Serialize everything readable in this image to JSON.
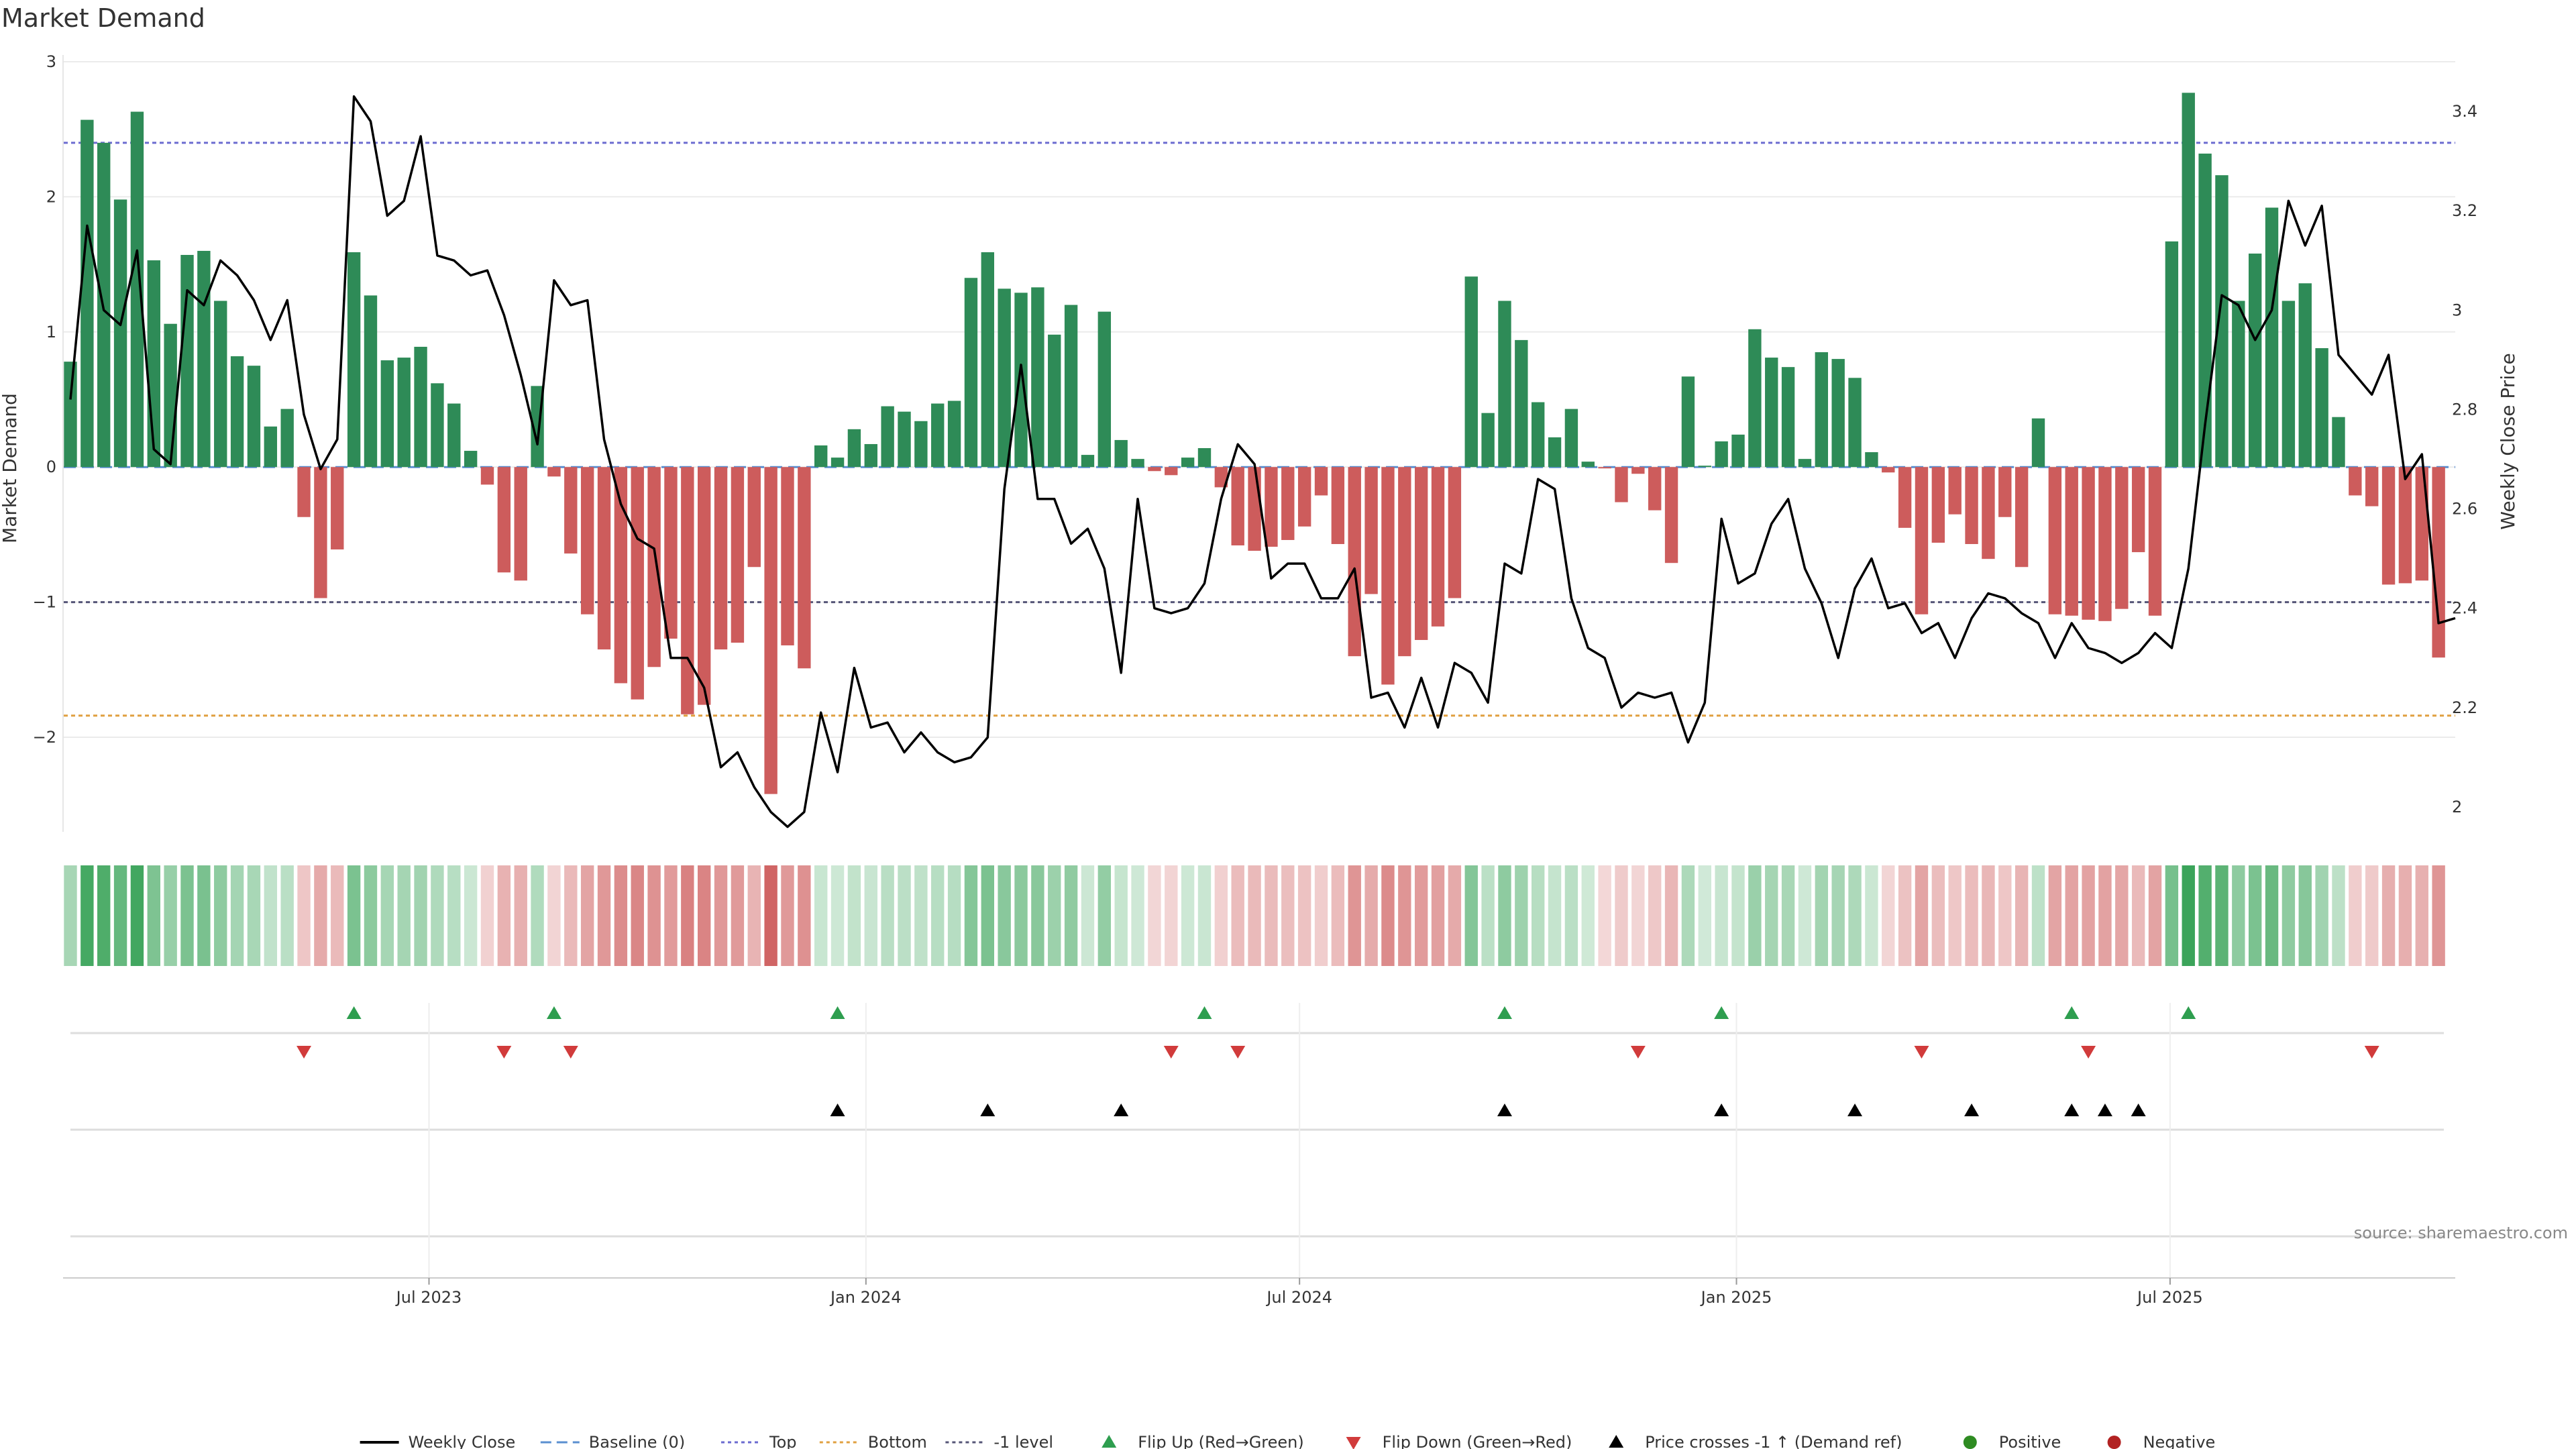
{
  "chart_data": {
    "type": "bar",
    "title": "Market Demand",
    "ylabel": "Market Demand",
    "y2label": "Weekly Close Price",
    "ylim": [
      -2.7,
      3.0
    ],
    "y2lim": [
      1.95,
      3.5
    ],
    "yticks": [
      3,
      2,
      1,
      0,
      -1,
      -2
    ],
    "y2ticks": [
      3.4,
      3.2,
      3,
      2.8,
      2.6,
      2.4,
      2.2,
      2
    ],
    "x_week_range": [
      0,
      143
    ],
    "x_ticks": [
      {
        "label": "Jul 2023",
        "x": 21.5
      },
      {
        "label": "Jan 2024",
        "x": 47.7
      },
      {
        "label": "Jul 2024",
        "x": 73.7
      },
      {
        "label": "Jan 2025",
        "x": 99.9
      },
      {
        "label": "Jul 2025",
        "x": 125.9
      }
    ],
    "reference_lines": [
      {
        "name": "Top",
        "value": 2.4,
        "color": "#6b6bd0"
      },
      {
        "name": "Baseline (0)",
        "value": 0,
        "color": "#5a8fd0"
      },
      {
        "name": "-1 level",
        "value": -1,
        "color": "#555577"
      },
      {
        "name": "Bottom",
        "value": -1.84,
        "color": "#e0a040"
      }
    ],
    "demand": [
      0.78,
      2.57,
      2.4,
      1.98,
      2.63,
      1.53,
      1.06,
      1.57,
      1.6,
      1.23,
      0.82,
      0.75,
      0.3,
      0.43,
      -0.37,
      -0.97,
      -0.61,
      1.59,
      1.27,
      0.79,
      0.81,
      0.89,
      0.62,
      0.47,
      0.12,
      -0.13,
      -0.78,
      -0.84,
      0.6,
      -0.07,
      -0.64,
      -1.09,
      -1.35,
      -1.6,
      -1.72,
      -1.48,
      -1.27,
      -1.83,
      -1.76,
      -1.35,
      -1.3,
      -0.74,
      -2.42,
      -1.32,
      -1.49,
      0.16,
      0.07,
      0.28,
      0.17,
      0.45,
      0.41,
      0.34,
      0.47,
      0.49,
      1.4,
      1.59,
      1.32,
      1.29,
      1.33,
      0.98,
      1.2,
      0.09,
      1.15,
      0.2,
      0.06,
      -0.03,
      -0.06,
      0.07,
      0.14,
      -0.15,
      -0.58,
      -0.62,
      -0.59,
      -0.54,
      -0.44,
      -0.21,
      -0.57,
      -1.4,
      -0.94,
      -1.61,
      -1.4,
      -1.28,
      -1.18,
      -0.97,
      1.41,
      0.4,
      1.23,
      0.94,
      0.48,
      0.22,
      0.43,
      0.04,
      -0.01,
      -0.26,
      -0.05,
      -0.32,
      -0.71,
      0.67,
      0.01,
      0.19,
      0.24,
      1.02,
      0.81,
      0.74,
      0.06,
      0.85,
      0.8,
      0.66,
      0.11,
      -0.04,
      -0.45,
      -1.09,
      -0.56,
      -0.35,
      -0.57,
      -0.68,
      -0.37,
      -0.74,
      0.36,
      -1.09,
      -1.1,
      -1.13,
      -1.14,
      -1.05,
      -0.63,
      -1.1,
      1.67,
      2.77,
      2.32,
      2.16,
      1.23,
      1.58,
      1.92,
      1.23,
      1.36,
      0.88,
      0.37,
      -0.21,
      -0.29,
      -0.87,
      -0.86,
      -0.84,
      -1.41
    ],
    "series": [
      {
        "name": "Weekly Close",
        "values": [
          2.82,
          3.17,
          3.0,
          2.97,
          3.12,
          2.72,
          2.69,
          3.04,
          3.01,
          3.1,
          3.07,
          3.02,
          2.94,
          3.02,
          2.79,
          2.68,
          2.74,
          3.43,
          3.38,
          3.19,
          3.22,
          3.35,
          3.11,
          3.1,
          3.07,
          3.08,
          2.99,
          2.87,
          2.73,
          3.06,
          3.01,
          3.02,
          2.74,
          2.61,
          2.54,
          2.52,
          2.3,
          2.3,
          2.24,
          2.08,
          2.11,
          2.04,
          1.99,
          1.96,
          1.99,
          2.19,
          2.07,
          2.28,
          2.16,
          2.17,
          2.11,
          2.15,
          2.11,
          2.09,
          2.1,
          2.14,
          2.64,
          2.89,
          2.62,
          2.62,
          2.53,
          2.56,
          2.48,
          2.27,
          2.62,
          2.4,
          2.39,
          2.4,
          2.45,
          2.62,
          2.73,
          2.69,
          2.46,
          2.49,
          2.49,
          2.42,
          2.42,
          2.48,
          2.22,
          2.23,
          2.16,
          2.26,
          2.16,
          2.29,
          2.27,
          2.21,
          2.49,
          2.47,
          2.66,
          2.64,
          2.42,
          2.32,
          2.3,
          2.2,
          2.23,
          2.22,
          2.23,
          2.13,
          2.21,
          2.58,
          2.45,
          2.47,
          2.57,
          2.62,
          2.48,
          2.41,
          2.3,
          2.44,
          2.5,
          2.4,
          2.41,
          2.35,
          2.37,
          2.3,
          2.38,
          2.43,
          2.42,
          2.39,
          2.37,
          2.3,
          2.37,
          2.32,
          2.31,
          2.29,
          2.31,
          2.35,
          2.32,
          2.48,
          2.77,
          3.03,
          3.01,
          2.94,
          3.0,
          3.22,
          3.13,
          3.21,
          2.91,
          2.87,
          2.83,
          2.91,
          2.66,
          2.71,
          2.37,
          2.38
        ]
      }
    ],
    "heat_strip": "same weekly Market Demand values coloured green (positive) / red (negative) with intensity by magnitude",
    "flip_up_weeks": [
      17,
      29,
      46,
      68,
      86,
      99,
      120,
      127
    ],
    "flip_down_weeks": [
      14,
      26,
      30,
      66,
      70,
      94,
      111,
      121,
      138
    ],
    "price_cross_weeks": [
      46,
      55,
      63,
      86,
      99,
      107,
      114,
      120,
      122,
      124
    ],
    "colors": {
      "positive": "#2e8b57",
      "negative": "#cd5c5c",
      "price": "#000000",
      "flip_up": "#2e9e4f",
      "flip_down": "#d13b3b",
      "cross": "#000000",
      "top": "#6b6bd0",
      "bottom": "#e0a040",
      "minus_one": "#555577",
      "baseline": "#5a8fd0",
      "positive_dot": "#2e8b22",
      "negative_dot": "#b22222"
    },
    "legend": [
      {
        "label": "Weekly Close",
        "kind": "line",
        "color": "#000000"
      },
      {
        "label": "Baseline (0)",
        "kind": "dash",
        "color": "#5a8fd0"
      },
      {
        "label": "Top",
        "kind": "dot",
        "color": "#6b6bd0"
      },
      {
        "label": "Bottom",
        "kind": "dot",
        "color": "#e0a040"
      },
      {
        "label": "-1 level",
        "kind": "dot",
        "color": "#555577"
      },
      {
        "label": "Flip Up (Red→Green)",
        "kind": "tri-up",
        "color": "#2e9e4f"
      },
      {
        "label": "Flip Down (Green→Red)",
        "kind": "tri-down",
        "color": "#d13b3b"
      },
      {
        "label": "Price crosses -1 ↑ (Demand ref)",
        "kind": "tri-up",
        "color": "#000000"
      },
      {
        "label": "Positive",
        "kind": "circle",
        "color": "#2e8b22"
      },
      {
        "label": "Negative",
        "kind": "circle",
        "color": "#b22222"
      }
    ],
    "source": "source: sharemaestro.com"
  }
}
